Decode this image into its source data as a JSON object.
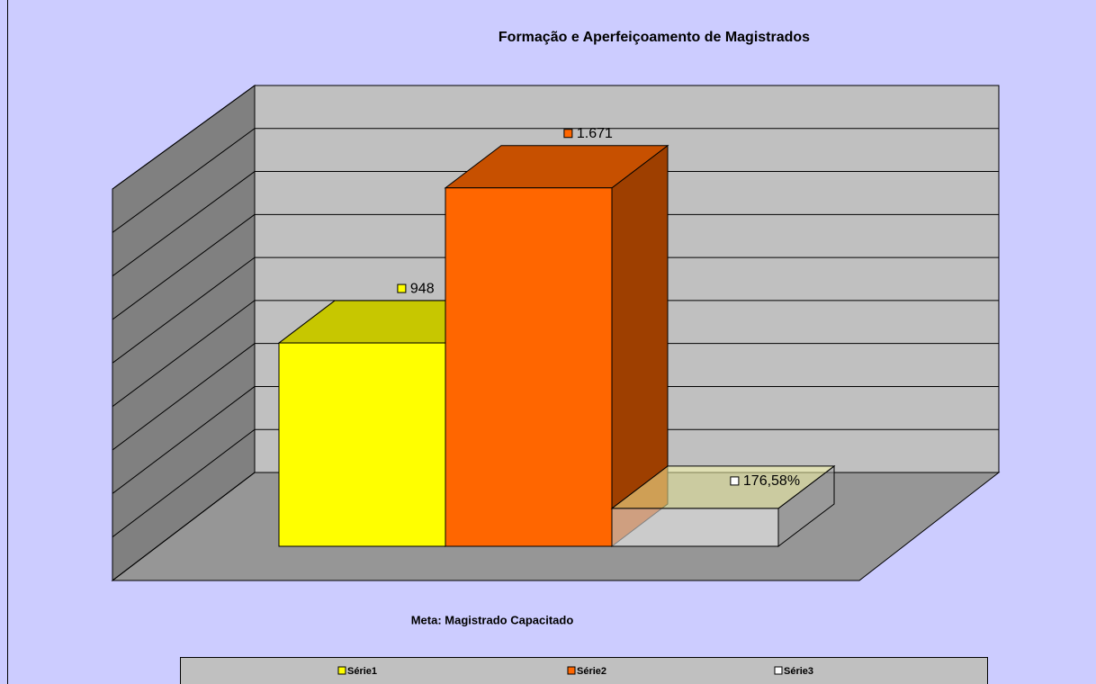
{
  "chart_data": {
    "type": "bar3d",
    "title": "Formação e Aperfeiçoamento de Magistrados",
    "categories": [
      "Meta: Magistrado Capacitado"
    ],
    "series": [
      {
        "name": "Série1",
        "color": "#ffff00",
        "values": [
          948
        ],
        "value_labels": [
          "948"
        ]
      },
      {
        "name": "Série2",
        "color": "#ff6600",
        "values": [
          1671
        ],
        "value_labels": [
          "1.671"
        ]
      },
      {
        "name": "Série3",
        "color": "#ffffff",
        "values": [
          176.58
        ],
        "value_labels": [
          "176,58%"
        ]
      }
    ],
    "ylim": [
      0,
      1800
    ],
    "yticks": [
      0,
      200,
      400,
      600,
      800,
      1000,
      1200,
      1400,
      1600,
      1800
    ],
    "grid": true,
    "legend": "bottom"
  }
}
